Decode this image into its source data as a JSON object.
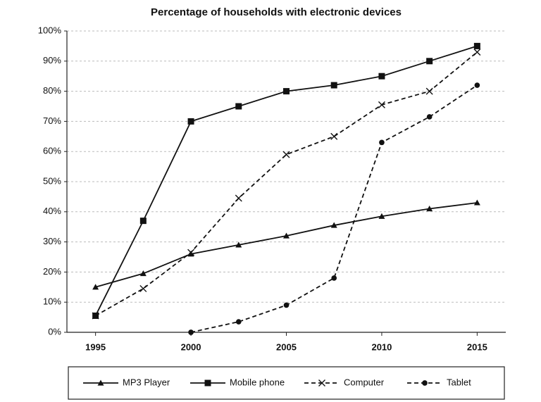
{
  "chart_data": {
    "type": "line",
    "title": "Percentage of households with electronic devices",
    "x": [
      1995,
      1997.5,
      2000,
      2002.5,
      2005,
      2007.5,
      2010,
      2012.5,
      2015
    ],
    "xlim": [
      1993.5,
      2016.5
    ],
    "xticks": [
      1995,
      2000,
      2005,
      2010,
      2015
    ],
    "ylim": [
      0,
      100
    ],
    "yticks": [
      {
        "value": 0,
        "label": "0%"
      },
      {
        "value": 10,
        "label": "10%"
      },
      {
        "value": 20,
        "label": "20%"
      },
      {
        "value": 30,
        "label": "30%"
      },
      {
        "value": 40,
        "label": "40%"
      },
      {
        "value": 50,
        "label": "50%"
      },
      {
        "value": 60,
        "label": "60%"
      },
      {
        "value": 70,
        "label": "70%"
      },
      {
        "value": 80,
        "label": "80%"
      },
      {
        "value": 90,
        "label": "90%"
      },
      {
        "value": 100,
        "label": "100%"
      }
    ],
    "grid": true,
    "legend": "bottom",
    "series": [
      {
        "name": "MP3 Player",
        "color": "#111111",
        "dashed": false,
        "marker": "triangle",
        "values": [
          15,
          19.5,
          26,
          29,
          32,
          35.5,
          38.5,
          41,
          43
        ]
      },
      {
        "name": "Mobile phone",
        "color": "#111111",
        "dashed": false,
        "marker": "square",
        "values": [
          5.5,
          37,
          70,
          75,
          80,
          82,
          85,
          90,
          95
        ]
      },
      {
        "name": "Computer",
        "color": "#111111",
        "dashed": true,
        "marker": "x",
        "values": [
          5.5,
          14.5,
          26.5,
          44.5,
          59,
          65,
          75.5,
          80,
          93
        ]
      },
      {
        "name": "Tablet",
        "color": "#111111",
        "dashed": true,
        "marker": "circle",
        "values": [
          null,
          null,
          0,
          3.5,
          9,
          18,
          63,
          71.5,
          82
        ]
      }
    ]
  }
}
